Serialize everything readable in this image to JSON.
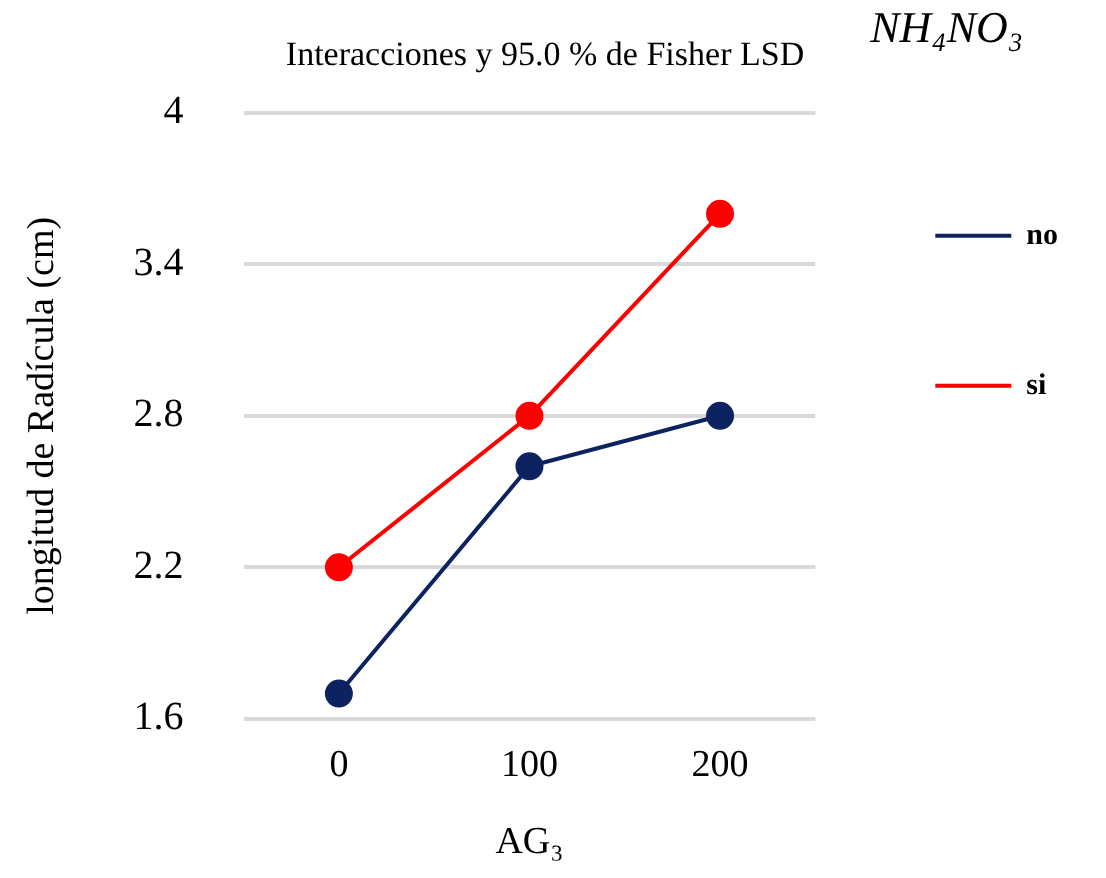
{
  "chart_data": {
    "type": "line",
    "title": "Interacciones y 95.0 % de Fisher LSD",
    "xlabel": "AG₃",
    "ylabel": "longitud de Radícula (cm)",
    "legend_title": "NH₄NO₃",
    "categories": [
      "0",
      "100",
      "200"
    ],
    "series": [
      {
        "name": "no",
        "color": "#0d2260",
        "values": [
          1.7,
          2.6,
          2.8
        ]
      },
      {
        "name": "si",
        "color": "#ff0000",
        "values": [
          2.2,
          2.8,
          3.6
        ]
      }
    ],
    "ylim": [
      1.6,
      4
    ],
    "yticks": [
      1.6,
      2.2,
      2.8,
      3.4,
      4
    ],
    "grid": "y",
    "legend": "right",
    "marker": "circle",
    "line_style": "solid"
  }
}
